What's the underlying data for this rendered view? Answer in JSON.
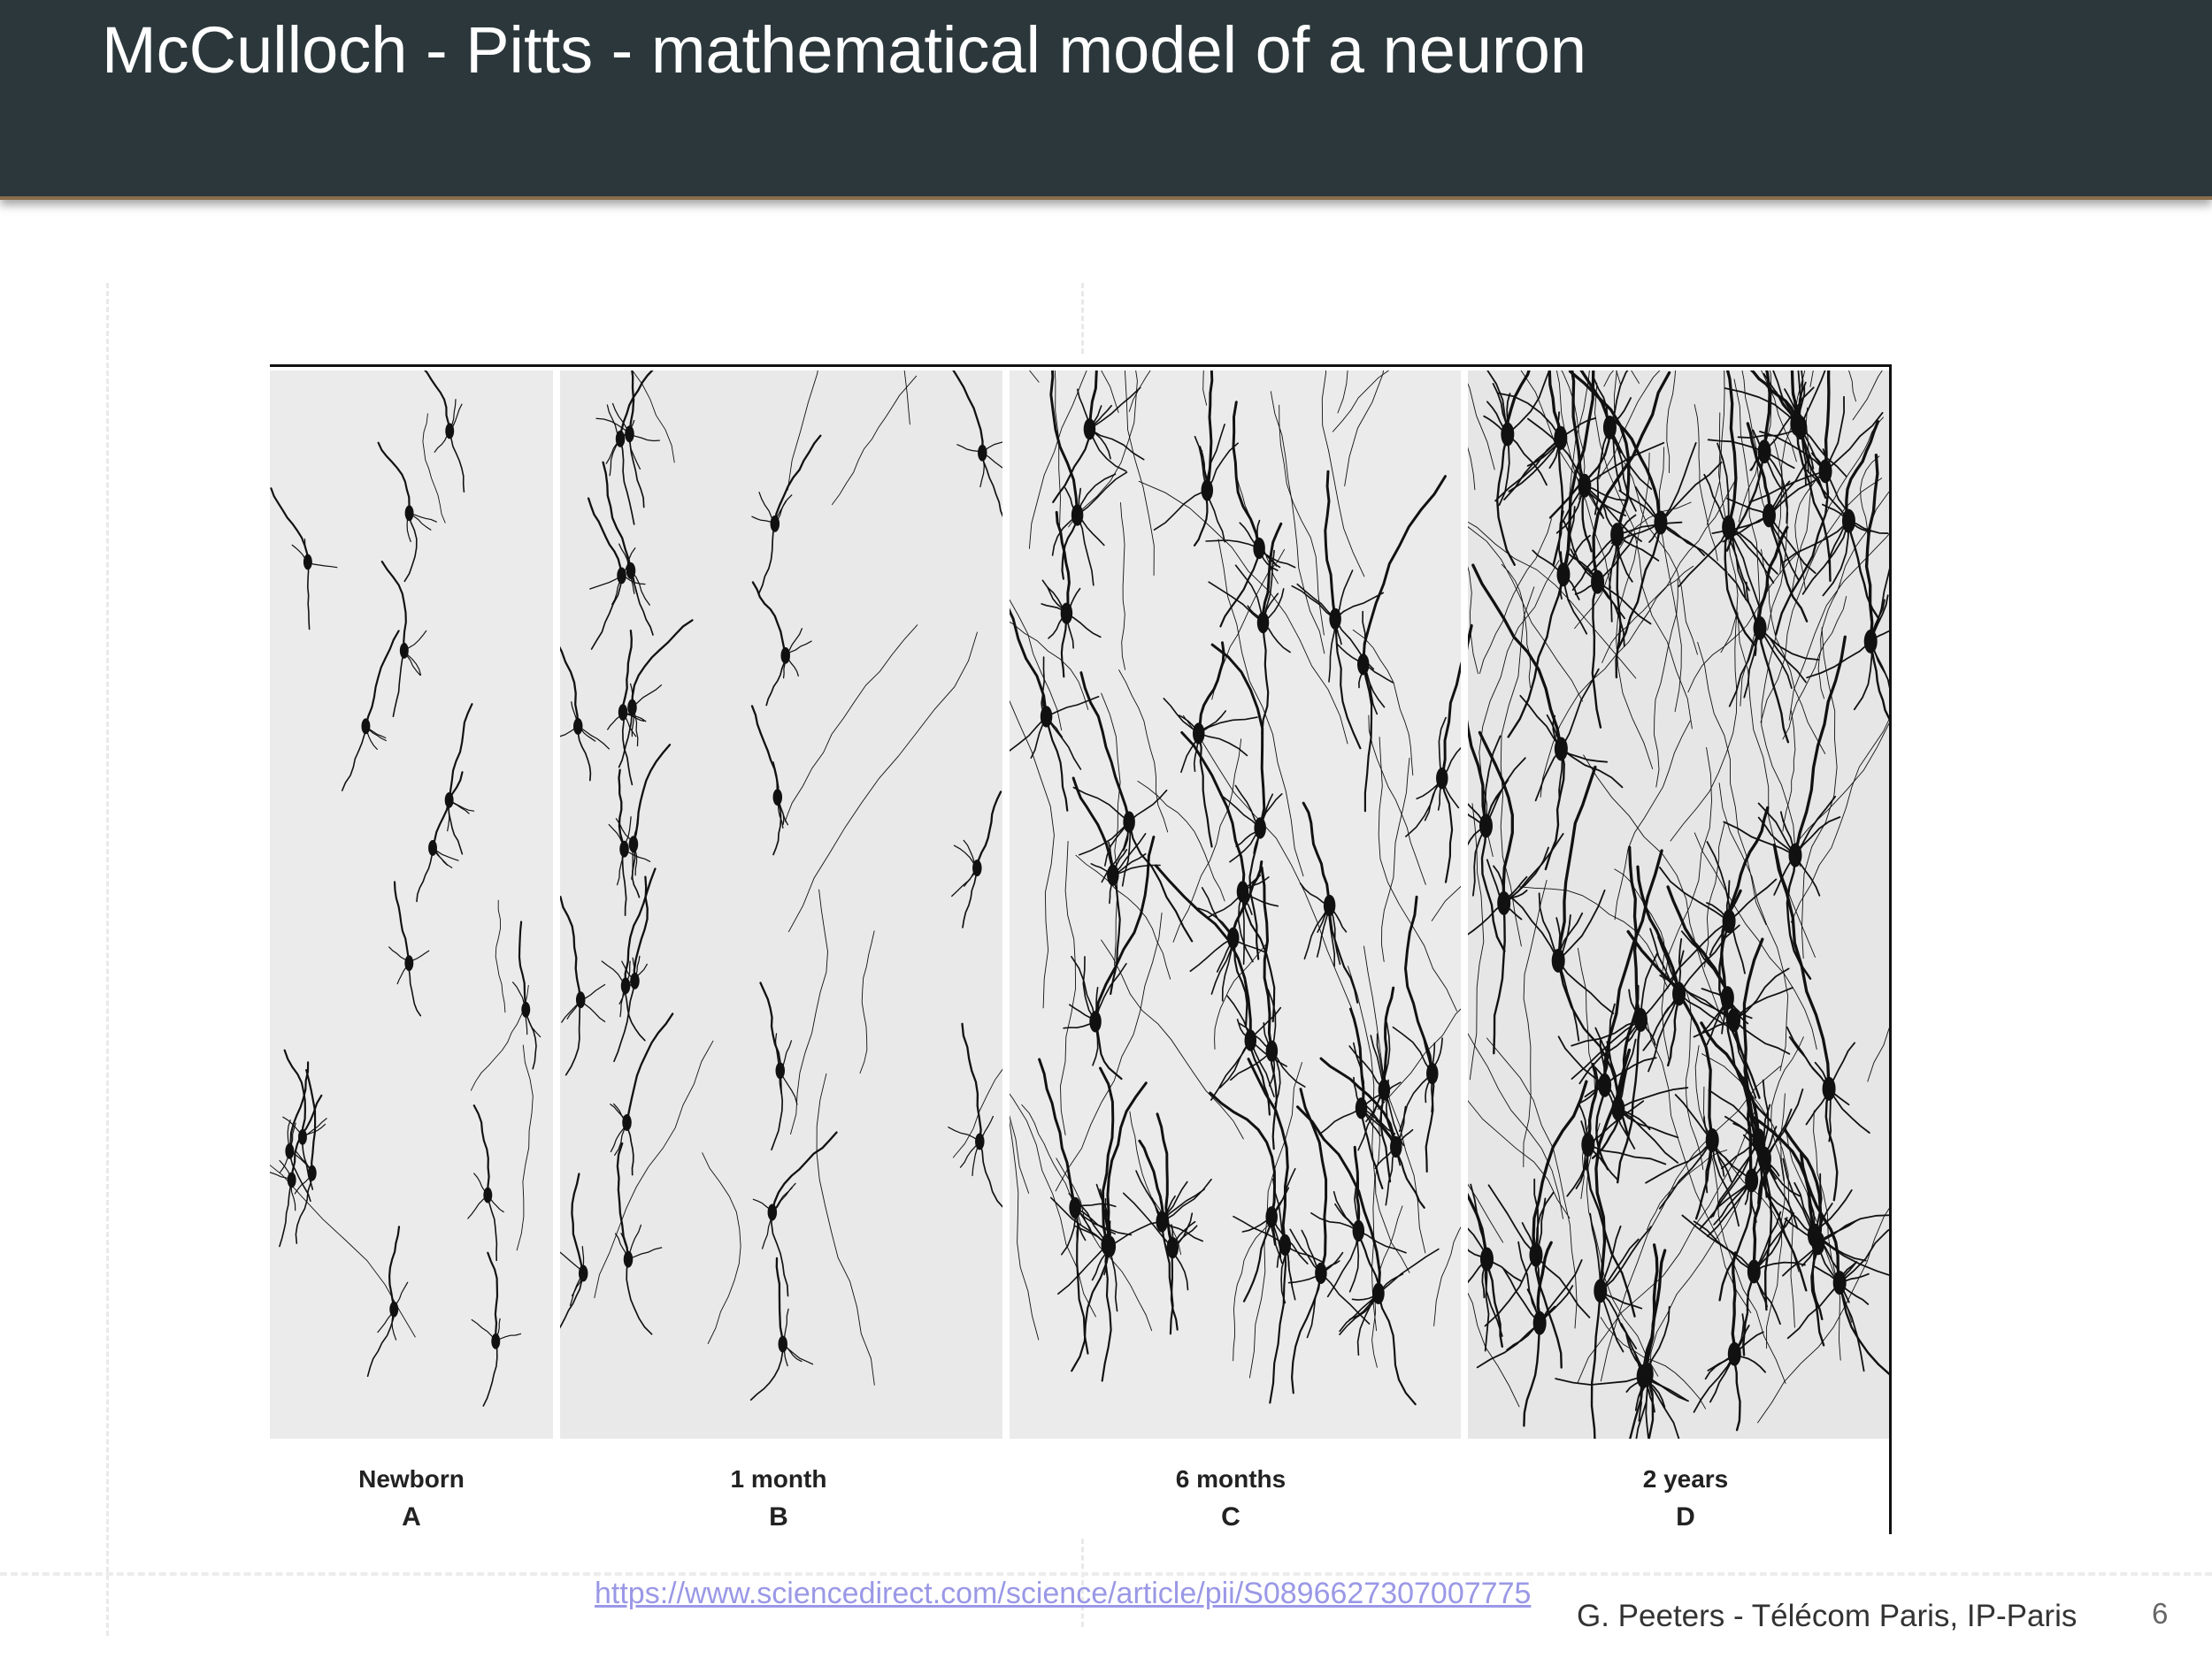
{
  "slide": {
    "title": "McCulloch - Pitts - mathematical model of a neuron",
    "page_number": "6"
  },
  "figure": {
    "panels": [
      {
        "label": "Newborn",
        "letter": "A"
      },
      {
        "label": "1 month",
        "letter": "B"
      },
      {
        "label": "6 months",
        "letter": "C"
      },
      {
        "label": "2 years",
        "letter": "D"
      }
    ]
  },
  "source": {
    "url": "https://www.sciencedirect.com/science/article/pii/S0896627307007775"
  },
  "footer": {
    "author": "G. Peeters - Télécom Paris, IP-Paris"
  }
}
